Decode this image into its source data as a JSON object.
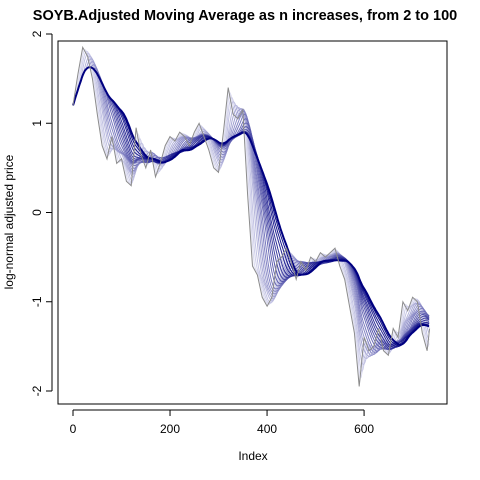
{
  "chart_data": {
    "type": "line",
    "title": "SOYB.Adjusted Moving Average as n increases, from 2 to 100",
    "xlabel": "Index",
    "ylabel": "log-normal adjusted price",
    "xlim": [
      0,
      740
    ],
    "ylim": [
      -2.0,
      2.0
    ],
    "x_ticks": [
      "0",
      "200",
      "400",
      "600"
    ],
    "y_ticks": [
      "-2",
      "-1",
      "0",
      "1",
      "2"
    ],
    "grid": false,
    "legend": "none",
    "raw_series": {
      "color": "#8c8c8c",
      "x": [
        0,
        10,
        20,
        30,
        40,
        50,
        60,
        70,
        80,
        90,
        100,
        110,
        120,
        130,
        140,
        150,
        160,
        170,
        180,
        190,
        200,
        210,
        220,
        230,
        240,
        250,
        260,
        270,
        280,
        290,
        300,
        310,
        320,
        330,
        340,
        350,
        360,
        370,
        380,
        390,
        400,
        410,
        420,
        430,
        440,
        450,
        460,
        470,
        480,
        490,
        500,
        510,
        520,
        530,
        540,
        550,
        560,
        570,
        580,
        590,
        600,
        610,
        620,
        630,
        640,
        650,
        660,
        670,
        680,
        690,
        700,
        710,
        720,
        730,
        735
      ],
      "y": [
        1.2,
        1.55,
        1.85,
        1.75,
        1.5,
        1.1,
        0.75,
        0.6,
        0.85,
        0.55,
        0.6,
        0.35,
        0.3,
        0.95,
        0.65,
        0.5,
        0.7,
        0.4,
        0.55,
        0.75,
        0.85,
        0.8,
        0.9,
        0.85,
        0.75,
        0.9,
        1.0,
        0.85,
        0.7,
        0.5,
        0.45,
        0.9,
        1.4,
        1.1,
        1.05,
        1.15,
        0.2,
        -0.6,
        -0.7,
        -0.95,
        -1.05,
        -0.95,
        -0.55,
        -0.5,
        -0.4,
        -0.55,
        -0.75,
        -0.55,
        -0.65,
        -0.5,
        -0.55,
        -0.45,
        -0.5,
        -0.45,
        -0.4,
        -0.6,
        -0.75,
        -1.05,
        -1.35,
        -1.95,
        -1.4,
        -1.55,
        -1.5,
        -1.3,
        -1.55,
        -1.6,
        -1.3,
        -1.4,
        -1.0,
        -1.1,
        -0.95,
        -1.0,
        -1.35,
        -1.55,
        -1.3
      ]
    },
    "ma_windows": {
      "from": 2,
      "to": 100,
      "color_light": "#e6e6f5",
      "color_dark": "#000080"
    }
  }
}
